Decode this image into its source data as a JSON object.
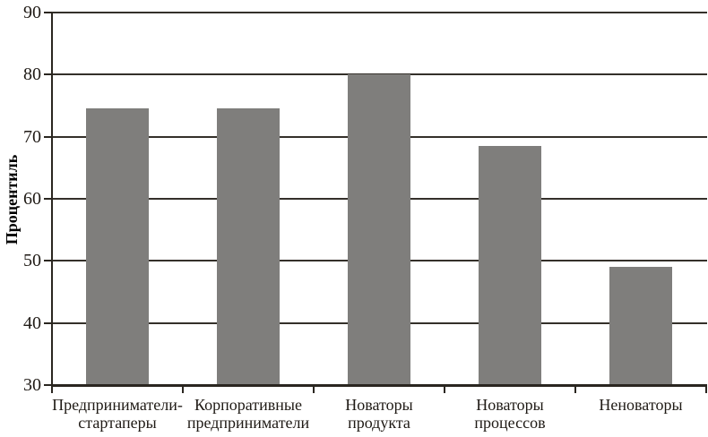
{
  "chart_data": {
    "type": "bar",
    "title": "",
    "xlabel": "",
    "ylabel": "Процентиль",
    "categories": [
      [
        "Предприниматели-",
        "стартаперы"
      ],
      [
        "Корпоративные",
        "предприниматели"
      ],
      [
        "Новаторы",
        "продукта"
      ],
      [
        "Новаторы",
        "процессов"
      ],
      [
        "Неноваторы"
      ]
    ],
    "values": [
      74.5,
      74.5,
      80,
      68.5,
      49
    ],
    "ylim": [
      30,
      90
    ],
    "yticks": [
      30,
      40,
      50,
      60,
      70,
      80,
      90
    ],
    "grid": true,
    "legend": false,
    "colors": {
      "bar": "#7f7e7c",
      "grid": "#34302a",
      "axis": "#2a2620",
      "text": "#1f1a15"
    }
  }
}
